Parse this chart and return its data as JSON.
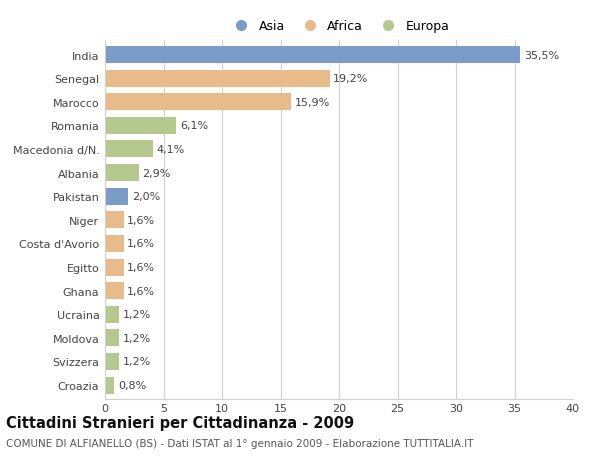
{
  "categories": [
    "India",
    "Senegal",
    "Marocco",
    "Romania",
    "Macedonia d/N.",
    "Albania",
    "Pakistan",
    "Niger",
    "Costa d'Avorio",
    "Egitto",
    "Ghana",
    "Ucraina",
    "Moldova",
    "Svizzera",
    "Croazia"
  ],
  "values": [
    35.5,
    19.2,
    15.9,
    6.1,
    4.1,
    2.9,
    2.0,
    1.6,
    1.6,
    1.6,
    1.6,
    1.2,
    1.2,
    1.2,
    0.8
  ],
  "labels": [
    "35,5%",
    "19,2%",
    "15,9%",
    "6,1%",
    "4,1%",
    "2,9%",
    "2,0%",
    "1,6%",
    "1,6%",
    "1,6%",
    "1,6%",
    "1,2%",
    "1,2%",
    "1,2%",
    "0,8%"
  ],
  "continents": [
    "Asia",
    "Africa",
    "Africa",
    "Europa",
    "Europa",
    "Europa",
    "Asia",
    "Africa",
    "Africa",
    "Africa",
    "Africa",
    "Europa",
    "Europa",
    "Europa",
    "Europa"
  ],
  "colors": {
    "Asia": "#7b9cc9",
    "Africa": "#e8bc8a",
    "Europa": "#b5c98e"
  },
  "legend_labels": [
    "Asia",
    "Africa",
    "Europa"
  ],
  "legend_colors": [
    "#7b9cc9",
    "#e8bc8a",
    "#b5c98e"
  ],
  "xlim": [
    0,
    40
  ],
  "xticks": [
    0,
    5,
    10,
    15,
    20,
    25,
    30,
    35,
    40
  ],
  "title": "Cittadini Stranieri per Cittadinanza - 2009",
  "subtitle": "COMUNE DI ALFIANELLO (BS) - Dati ISTAT al 1° gennaio 2009 - Elaborazione TUTTITALIA.IT",
  "bg_color": "#ffffff",
  "grid_color": "#d0d0d0",
  "bar_height": 0.72,
  "label_fontsize": 8,
  "tick_fontsize": 8,
  "title_fontsize": 10.5,
  "subtitle_fontsize": 7.5
}
